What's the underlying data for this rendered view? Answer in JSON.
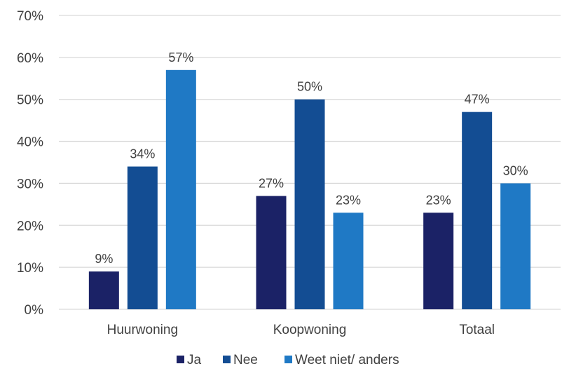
{
  "chart_data": {
    "type": "bar",
    "title": "",
    "xlabel": "",
    "ylabel": "",
    "categories": [
      "Huurwoning",
      "Koopwoning",
      "Totaal"
    ],
    "series": [
      {
        "name": "Ja",
        "values": [
          9,
          27,
          23
        ],
        "labels": [
          "9%",
          "27%",
          "23%"
        ],
        "color": "#1b2266"
      },
      {
        "name": "Nee",
        "values": [
          34,
          50,
          47
        ],
        "labels": [
          "34%",
          "50%",
          "47%"
        ],
        "color": "#134d93"
      },
      {
        "name": "Weet niet/ anders",
        "values": [
          57,
          23,
          30
        ],
        "labels": [
          "57%",
          "23%",
          "30%"
        ],
        "color": "#1f79c5"
      }
    ],
    "ylim": [
      0,
      70
    ],
    "yticks": [
      0,
      10,
      20,
      30,
      40,
      50,
      60,
      70
    ],
    "ytick_labels": [
      "0%",
      "10%",
      "20%",
      "30%",
      "40%",
      "50%",
      "60%",
      "70%"
    ],
    "grid": true,
    "legend_position": "bottom",
    "colors": {
      "grid": "#d9d9d9",
      "text": "#404040"
    }
  }
}
